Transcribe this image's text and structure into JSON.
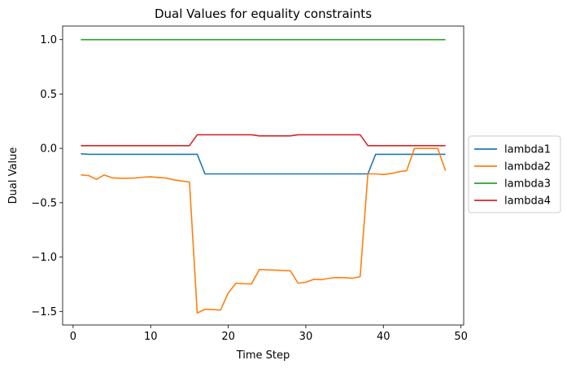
{
  "chart_data": {
    "type": "line",
    "title": "Dual Values for equality constraints",
    "xlabel": "Time Step",
    "ylabel": "Dual Value",
    "xlim": [
      -1.35,
      50.35
    ],
    "ylim": [
      -1.625,
      1.125
    ],
    "x_ticks": [
      0,
      10,
      20,
      30,
      40,
      50
    ],
    "x_tick_labels": [
      "0",
      "10",
      "20",
      "30",
      "40",
      "50"
    ],
    "y_ticks": [
      1.0,
      0.5,
      0.0,
      -0.5,
      -1.0,
      -1.5
    ],
    "y_tick_labels": [
      "1.0",
      "0.5",
      "0.0",
      "−0.5",
      "−1.0",
      "−1.5"
    ],
    "grid": false,
    "legend_position": "outside-right",
    "x": [
      1,
      2,
      3,
      4,
      5,
      6,
      7,
      8,
      9,
      10,
      11,
      12,
      13,
      14,
      15,
      16,
      17,
      18,
      19,
      20,
      21,
      22,
      23,
      24,
      25,
      26,
      27,
      28,
      29,
      30,
      31,
      32,
      33,
      34,
      35,
      36,
      37,
      38,
      39,
      40,
      41,
      42,
      43,
      44,
      45,
      46,
      47,
      48
    ],
    "series": [
      {
        "name": "lambda1",
        "color": "#1f77b4",
        "values": [
          -0.05,
          -0.055,
          -0.055,
          -0.055,
          -0.055,
          -0.055,
          -0.055,
          -0.055,
          -0.055,
          -0.055,
          -0.055,
          -0.055,
          -0.055,
          -0.055,
          -0.055,
          -0.055,
          -0.235,
          -0.235,
          -0.235,
          -0.235,
          -0.235,
          -0.235,
          -0.235,
          -0.235,
          -0.235,
          -0.235,
          -0.235,
          -0.235,
          -0.235,
          -0.235,
          -0.235,
          -0.235,
          -0.235,
          -0.235,
          -0.235,
          -0.235,
          -0.235,
          -0.235,
          -0.055,
          -0.055,
          -0.055,
          -0.055,
          -0.055,
          -0.055,
          -0.055,
          -0.055,
          -0.055,
          -0.055
        ]
      },
      {
        "name": "lambda2",
        "color": "#ff7f0e",
        "values": [
          -0.245,
          -0.25,
          -0.285,
          -0.245,
          -0.27,
          -0.275,
          -0.275,
          -0.273,
          -0.265,
          -0.262,
          -0.268,
          -0.273,
          -0.29,
          -0.3,
          -0.31,
          -1.515,
          -1.48,
          -1.482,
          -1.488,
          -1.33,
          -1.24,
          -1.245,
          -1.247,
          -1.115,
          -1.118,
          -1.12,
          -1.124,
          -1.126,
          -1.24,
          -1.232,
          -1.205,
          -1.208,
          -1.195,
          -1.188,
          -1.19,
          -1.195,
          -1.18,
          -0.235,
          -0.235,
          -0.24,
          -0.232,
          -0.215,
          -0.205,
          0.0,
          0.0,
          0.0,
          0.0,
          -0.205
        ]
      },
      {
        "name": "lambda3",
        "color": "#2ca02c",
        "values": [
          1.0,
          1.0,
          1.0,
          1.0,
          1.0,
          1.0,
          1.0,
          1.0,
          1.0,
          1.0,
          1.0,
          1.0,
          1.0,
          1.0,
          1.0,
          1.0,
          1.0,
          1.0,
          1.0,
          1.0,
          1.0,
          1.0,
          1.0,
          1.0,
          1.0,
          1.0,
          1.0,
          1.0,
          1.0,
          1.0,
          1.0,
          1.0,
          1.0,
          1.0,
          1.0,
          1.0,
          1.0,
          1.0,
          1.0,
          1.0,
          1.0,
          1.0,
          1.0,
          1.0,
          1.0,
          1.0,
          1.0,
          1.0
        ]
      },
      {
        "name": "lambda4",
        "color": "#d62728",
        "values": [
          0.025,
          0.025,
          0.025,
          0.025,
          0.025,
          0.025,
          0.025,
          0.025,
          0.025,
          0.025,
          0.025,
          0.025,
          0.025,
          0.025,
          0.025,
          0.125,
          0.125,
          0.125,
          0.125,
          0.125,
          0.125,
          0.125,
          0.125,
          0.115,
          0.115,
          0.115,
          0.115,
          0.115,
          0.125,
          0.125,
          0.125,
          0.125,
          0.125,
          0.125,
          0.125,
          0.125,
          0.125,
          0.025,
          0.025,
          0.025,
          0.025,
          0.025,
          0.025,
          0.025,
          0.025,
          0.025,
          0.025,
          0.025
        ]
      }
    ]
  }
}
